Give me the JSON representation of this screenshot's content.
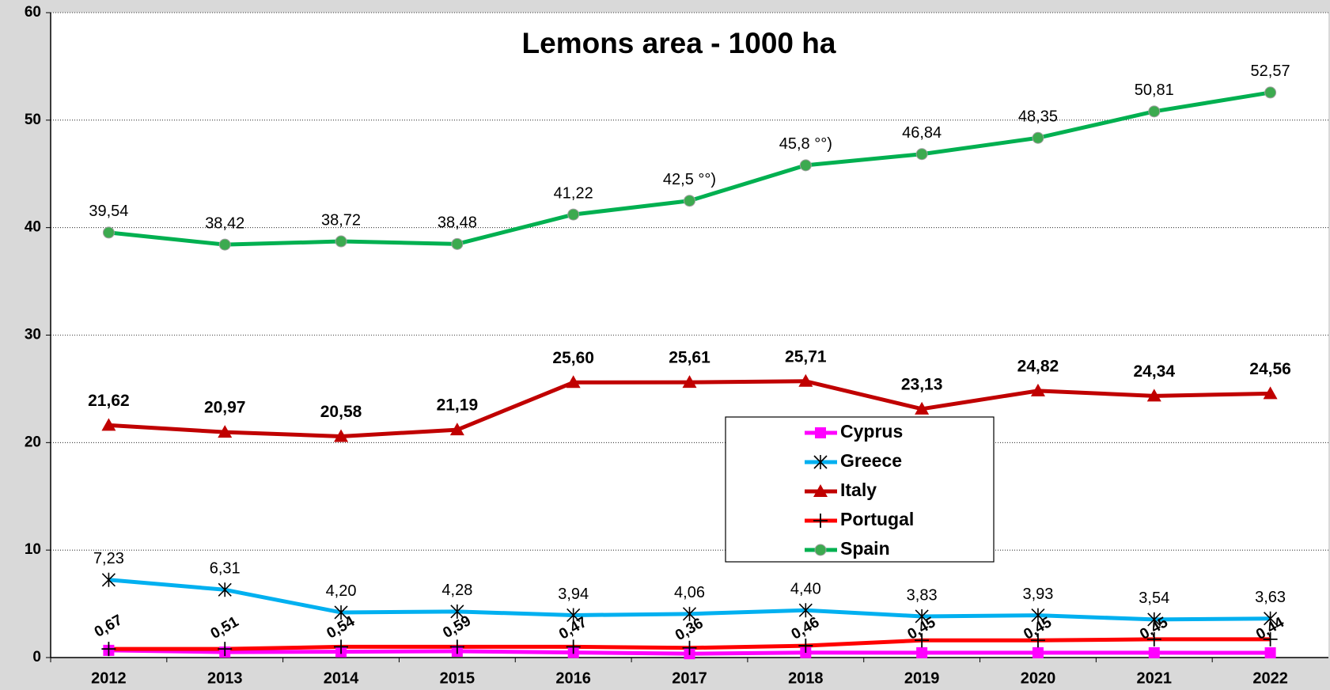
{
  "chart_data": {
    "type": "line",
    "title": "Lemons area - 1000 ha",
    "categories": [
      "2012",
      "2013",
      "2014",
      "2015",
      "2016",
      "2017",
      "2018",
      "2019",
      "2020",
      "2021",
      "2022"
    ],
    "series": [
      {
        "name": "Cyprus",
        "color": "#ff00ff",
        "marker": "square",
        "values": [
          0.67,
          0.51,
          0.54,
          0.59,
          0.47,
          0.36,
          0.46,
          0.45,
          0.45,
          0.45,
          0.44
        ],
        "value_labels": [
          "0,67",
          "0,51",
          "0,54",
          "0,59",
          "0,47",
          "0,36",
          "0,46",
          "0,45",
          "0,45",
          "0,45",
          "0,44"
        ]
      },
      {
        "name": "Greece",
        "color": "#00b0f0",
        "marker": "asterisk",
        "values": [
          7.23,
          6.31,
          4.2,
          4.28,
          3.94,
          4.06,
          4.4,
          3.83,
          3.93,
          3.54,
          3.63
        ],
        "value_labels": [
          "7,23",
          "6,31",
          "4,20",
          "4,28",
          "3,94",
          "4,06",
          "4,40",
          "3,83",
          "3,93",
          "3,54",
          "3,63"
        ]
      },
      {
        "name": "Italy",
        "color": "#c00000",
        "marker": "triangle",
        "values": [
          21.62,
          20.97,
          20.58,
          21.19,
          25.6,
          25.61,
          25.71,
          23.13,
          24.82,
          24.34,
          24.56
        ],
        "value_labels": [
          "21,62",
          "20,97",
          "20,58",
          "21,19",
          "25,60",
          "25,61",
          "25,71",
          "23,13",
          "24,82",
          "24,34",
          "24,56"
        ]
      },
      {
        "name": "Portugal",
        "color": "#ff0000",
        "marker": "plus",
        "values": [
          0.8,
          0.8,
          1.0,
          1.0,
          1.0,
          0.9,
          1.1,
          1.6,
          1.6,
          1.7,
          1.7
        ]
      },
      {
        "name": "Spain",
        "color": "#00b050",
        "marker": "circle",
        "values": [
          39.54,
          38.42,
          38.72,
          38.48,
          41.22,
          42.5,
          45.8,
          46.84,
          48.35,
          50.81,
          52.57
        ],
        "value_labels": [
          "39,54",
          "38,42",
          "38,72",
          "38,48",
          "41,22",
          "42,5 °°)",
          "45,8 °°)",
          "46,84",
          "48,35",
          "50,81",
          "52,57"
        ]
      }
    ],
    "ylim": [
      0,
      60
    ],
    "yticks": [
      0,
      10,
      20,
      30,
      40,
      50,
      60
    ],
    "grid": true
  }
}
